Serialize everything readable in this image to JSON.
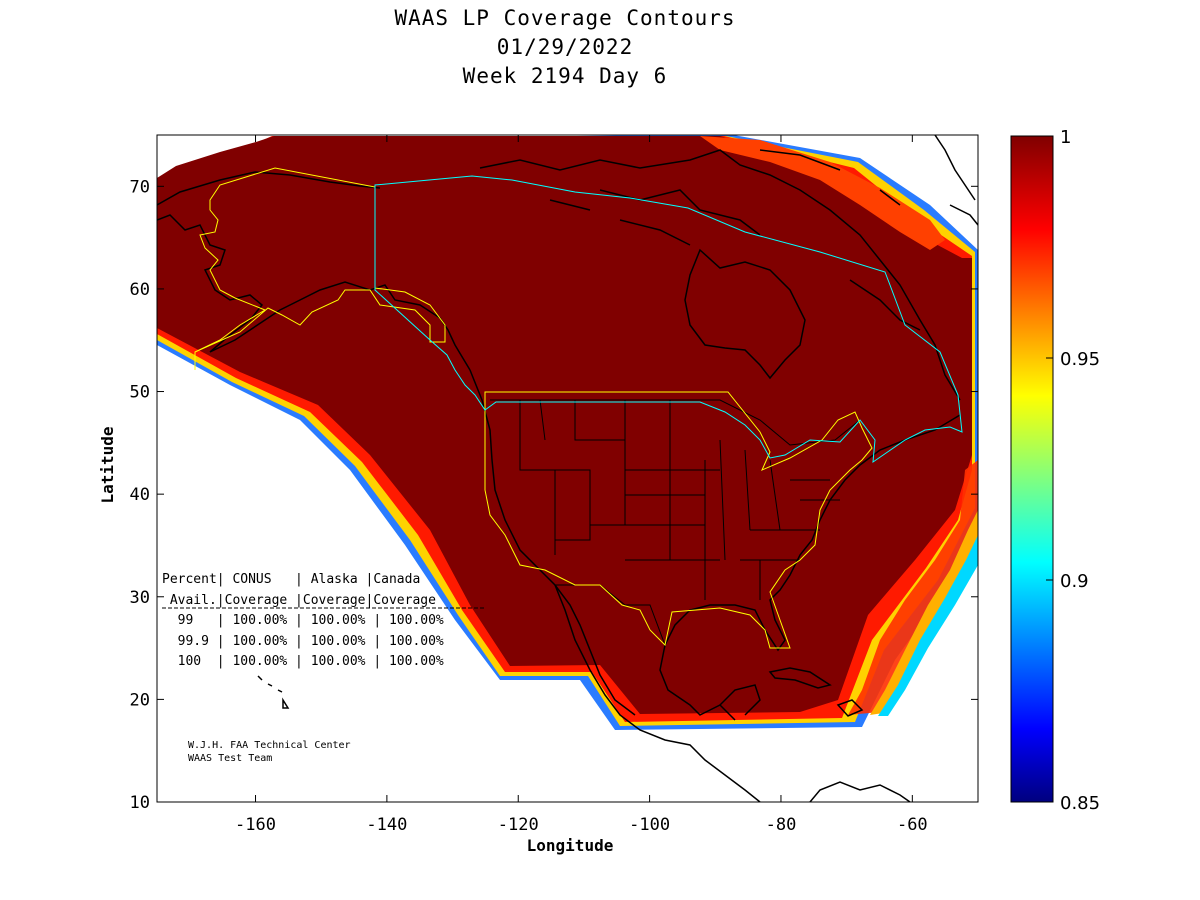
{
  "title": {
    "line1": "WAAS LP Coverage Contours",
    "line2": "01/29/2022",
    "line3": "Week 2194 Day 6"
  },
  "axes": {
    "xlabel": "Longitude",
    "ylabel": "Latitude",
    "xlim": [
      -175,
      -50
    ],
    "ylim": [
      10,
      75
    ],
    "xticks": [
      -160,
      -140,
      -120,
      -100,
      -80,
      -60
    ],
    "yticks": [
      10,
      20,
      30,
      40,
      50,
      60,
      70
    ]
  },
  "colorbar": {
    "range": [
      0.85,
      1.0
    ],
    "ticks": [
      "1",
      "0.95",
      "0.9",
      "0.85"
    ],
    "ticks_numeric": [
      1.0,
      0.95,
      0.9,
      0.85
    ],
    "colormap": "jet"
  },
  "coverage_table": {
    "header1": "Percent| CONUS   | Alaska |Canada",
    "header2": " Avail.|Coverage |Coverage|Coverage",
    "rows": [
      "  99   | 100.00% | 100.00% | 100.00%",
      "  99.9 | 100.00% | 100.00% | 100.00%",
      "  100  | 100.00% | 100.00% | 100.00%"
    ]
  },
  "credit": {
    "line1": "W.J.H. FAA Technical Center",
    "line2": "WAAS Test Team"
  },
  "colors": {
    "full_coverage": "#800000",
    "service_boundary_us": "#ffff00",
    "service_boundary_canada": "#00ffff",
    "coastline": "#000000"
  }
}
